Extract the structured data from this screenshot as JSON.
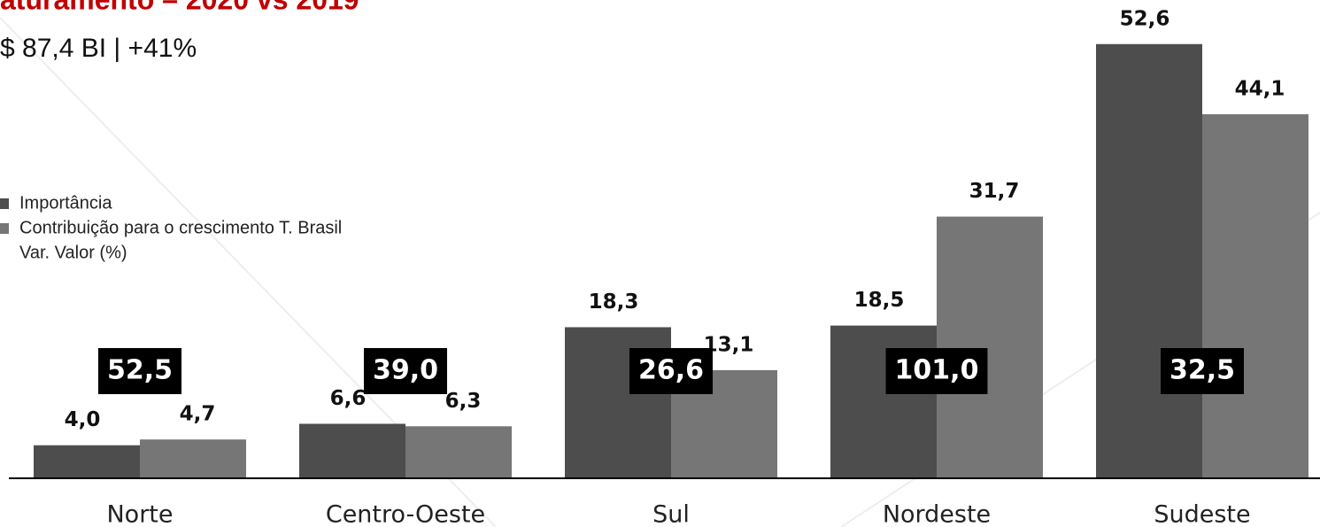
{
  "chart_data": {
    "type": "bar",
    "title": "aturamento – 2020 vs 2019",
    "subtitle": "$ 87,4 BI | +41%",
    "categories": [
      "Norte",
      "Centro-Oeste",
      "Sul",
      "Nordeste",
      "Sudeste"
    ],
    "series": [
      {
        "name": "Importância",
        "color": "#4d4d4d",
        "values": [
          4.0,
          6.6,
          18.3,
          18.5,
          52.6
        ],
        "value_labels": [
          "4,0",
          "6,6",
          "18,3",
          "18,5",
          "52,6"
        ]
      },
      {
        "name": "Contribuição para o crescimento T. Brasil",
        "color": "#767676",
        "values": [
          4.7,
          6.3,
          13.1,
          31.7,
          44.1
        ],
        "value_labels": [
          "4,7",
          "6,3",
          "13,1",
          "31,7",
          "44,1"
        ]
      },
      {
        "name": "Var. Valor (%)",
        "color": "#000000",
        "values": [
          52.5,
          39.0,
          26.6,
          101.0,
          32.5
        ],
        "value_labels": [
          "52,5",
          "39,0",
          "26,6",
          "101,0",
          "32,5"
        ]
      }
    ],
    "ylim": [
      0,
      55
    ]
  }
}
